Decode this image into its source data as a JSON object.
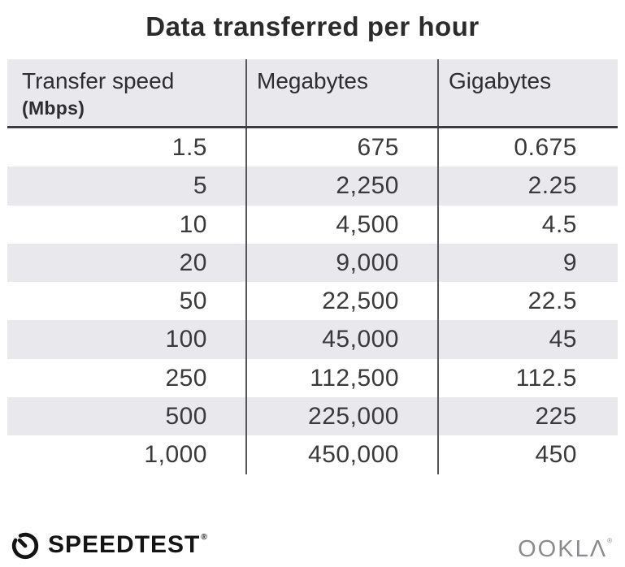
{
  "title": "Data transferred per hour",
  "table": {
    "columns": [
      {
        "label": "Transfer speed",
        "sublabel": "(Mbps)"
      },
      {
        "label": "Megabytes"
      },
      {
        "label": "Gigabytes"
      }
    ],
    "rows": [
      [
        "1.5",
        "675",
        "0.675"
      ],
      [
        "5",
        "2,250",
        "2.25"
      ],
      [
        "10",
        "4,500",
        "4.5"
      ],
      [
        "20",
        "9,000",
        "9"
      ],
      [
        "50",
        "22,500",
        "22.5"
      ],
      [
        "100",
        "45,000",
        "45"
      ],
      [
        "250",
        "112,500",
        "112.5"
      ],
      [
        "500",
        "225,000",
        "225"
      ],
      [
        "1,000",
        "450,000",
        "450"
      ]
    ]
  },
  "footer": {
    "speedtest_label": "SPEEDTEST",
    "speedtest_trademark": "®",
    "ookla_label": "OOKLΛ",
    "ookla_trademark": "®"
  },
  "colors": {
    "stripe_gray": "#e9e8ec",
    "divider_gray": "#55555a",
    "header_border": "#3d3d40",
    "title_text": "#2b2b2d",
    "body_text": "#3a3a3d",
    "speedtest_black": "#141414",
    "ookla_gray": "#8b8b8f"
  },
  "chart_data": {
    "type": "table",
    "title": "Data transferred per hour",
    "columns": [
      "Transfer speed (Mbps)",
      "Megabytes",
      "Gigabytes"
    ],
    "rows": [
      [
        1.5,
        675,
        0.675
      ],
      [
        5,
        2250,
        2.25
      ],
      [
        10,
        4500,
        4.5
      ],
      [
        20,
        9000,
        9
      ],
      [
        50,
        22500,
        22.5
      ],
      [
        100,
        45000,
        45
      ],
      [
        250,
        112500,
        112.5
      ],
      [
        500,
        225000,
        225
      ],
      [
        1000,
        450000,
        450
      ]
    ]
  }
}
